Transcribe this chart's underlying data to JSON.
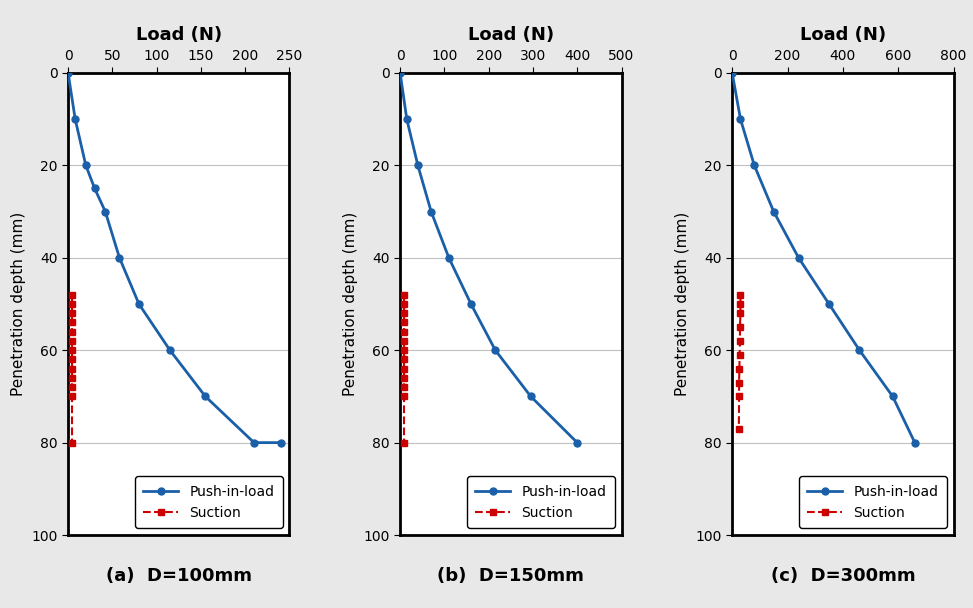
{
  "panels": [
    {
      "title": "Load (N)",
      "xlabel_ticks": [
        0,
        50,
        100,
        150,
        200,
        250
      ],
      "xlim": [
        0,
        250
      ],
      "ylim": [
        100,
        0
      ],
      "yticks": [
        0,
        20,
        40,
        60,
        80,
        100
      ],
      "caption": "(a)  D=100mm",
      "push_x": [
        0,
        8,
        20,
        30,
        42,
        58,
        80,
        115,
        155,
        210,
        240
      ],
      "push_y": [
        0,
        10,
        20,
        25,
        30,
        40,
        50,
        60,
        70,
        80,
        80
      ],
      "suct_x": [
        4,
        4,
        4,
        4,
        4,
        4,
        4,
        4,
        4,
        4,
        4,
        4,
        4
      ],
      "suct_y": [
        48,
        50,
        52,
        54,
        56,
        58,
        60,
        62,
        64,
        66,
        68,
        70,
        80
      ]
    },
    {
      "title": "Load (N)",
      "xlabel_ticks": [
        0,
        100,
        200,
        300,
        400,
        500
      ],
      "xlim": [
        0,
        500
      ],
      "ylim": [
        100,
        0
      ],
      "yticks": [
        0,
        20,
        40,
        60,
        80,
        100
      ],
      "caption": "(b)  D=150mm",
      "push_x": [
        0,
        15,
        40,
        70,
        110,
        160,
        215,
        295,
        400
      ],
      "push_y": [
        0,
        10,
        20,
        30,
        40,
        50,
        60,
        70,
        80
      ],
      "suct_x": [
        8,
        8,
        8,
        8,
        8,
        8,
        8,
        8,
        8,
        8,
        8,
        8,
        8
      ],
      "suct_y": [
        48,
        50,
        52,
        54,
        56,
        58,
        60,
        62,
        64,
        66,
        68,
        70,
        80
      ]
    },
    {
      "title": "Load (N)",
      "xlabel_ticks": [
        0,
        200,
        400,
        600,
        800
      ],
      "xlim": [
        0,
        800
      ],
      "ylim": [
        100,
        0
      ],
      "yticks": [
        0,
        20,
        40,
        60,
        80,
        100
      ],
      "caption": "(c)  D=300mm",
      "push_x": [
        0,
        30,
        80,
        150,
        240,
        350,
        460,
        580,
        660
      ],
      "push_y": [
        0,
        10,
        20,
        30,
        40,
        50,
        60,
        70,
        80
      ],
      "suct_x": [
        30,
        30,
        30,
        28,
        28,
        27,
        26,
        25,
        25,
        24
      ],
      "suct_y": [
        48,
        50,
        52,
        55,
        58,
        61,
        64,
        67,
        70,
        77
      ]
    }
  ],
  "ylabel": "Penetration depth (mm)",
  "push_color": "#1a5fa8",
  "suction_color": "#cc0000",
  "bg_color": "#e8e8e8",
  "plot_bg_color": "#ffffff",
  "title_fontsize": 13,
  "label_fontsize": 11,
  "tick_fontsize": 10,
  "legend_fontsize": 10,
  "caption_fontsize": 13
}
